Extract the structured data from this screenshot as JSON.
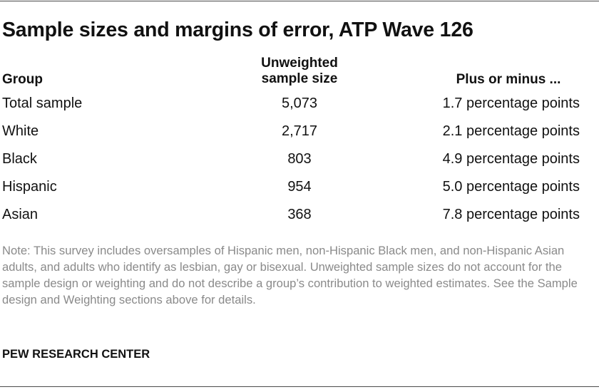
{
  "title": "Sample sizes and margins of error, ATP Wave 126",
  "headers": {
    "group": "Group",
    "sample_size_line1": "Unweighted",
    "sample_size_line2": "sample size",
    "moe": "Plus or minus ..."
  },
  "rows": [
    {
      "group": "Total sample",
      "size": "5,073",
      "moe": "1.7 percentage points"
    },
    {
      "group": "White",
      "size": "2,717",
      "moe": "2.1 percentage points"
    },
    {
      "group": "Black",
      "size": "803",
      "moe": "4.9 percentage points"
    },
    {
      "group": "Hispanic",
      "size": "954",
      "moe": "5.0 percentage points"
    },
    {
      "group": "Asian",
      "size": "368",
      "moe": "7.8 percentage points"
    }
  ],
  "note": "Note: This survey includes oversamples of Hispanic men, non-Hispanic Black men, and non-Hispanic Asian adults, and adults who identify as lesbian, gay or bisexual. Unweighted sample sizes do not account for the sample design or weighting and do not describe a group’s contribution to weighted estimates. See the Sample design and Weighting sections above for details.",
  "source": "PEW RESEARCH CENTER"
}
